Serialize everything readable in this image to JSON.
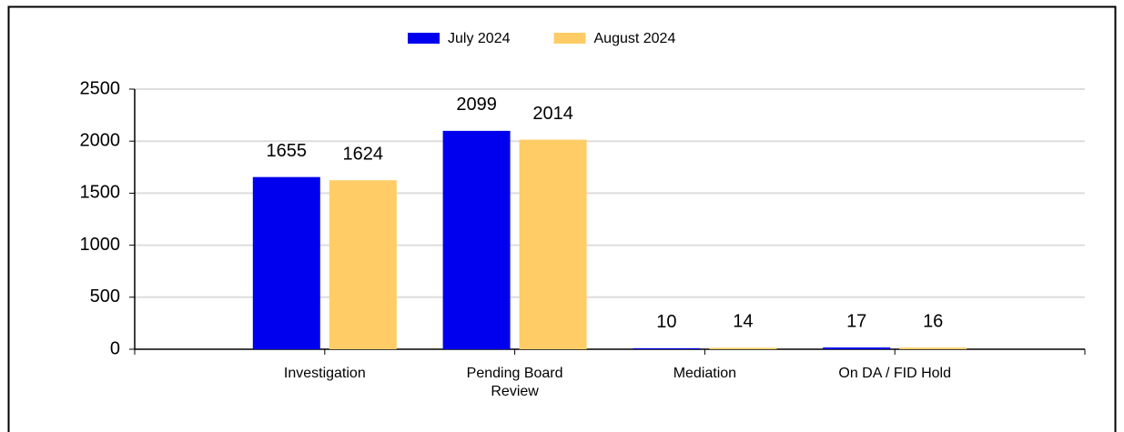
{
  "chart_data": {
    "type": "bar",
    "categories": [
      "Investigation",
      "Pending Board Review",
      "Mediation",
      "On DA / FID Hold"
    ],
    "series": [
      {
        "name": "July 2024",
        "color": "#0000ee",
        "values": [
          1655,
          2099,
          10,
          17
        ]
      },
      {
        "name": "August 2024",
        "color": "#ffcc66",
        "values": [
          1624,
          2014,
          14,
          16
        ]
      }
    ],
    "ylim": [
      0,
      2500
    ],
    "yticks": [
      0,
      500,
      1000,
      1500,
      2000,
      2500
    ],
    "grid": true,
    "legend": "top"
  }
}
